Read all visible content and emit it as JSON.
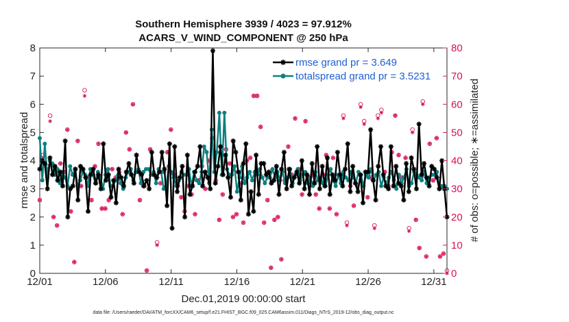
{
  "title": {
    "line1": "Southern Hemisphere 3939 / 4023 = 97.912%",
    "line2": "ACARS_V_WIND_COMPONENT @ 250 hPa"
  },
  "footer": "data file: /Users/raeder/DAI/ATM_forcXX/CAM6_setup/f.e21.FHIST_BGC.f09_025.CAM6assim.011/Diags_NTrS_2019-12/obs_diag_output.nc",
  "colors": {
    "rmse": "#000000",
    "spread": "#0d8080",
    "obs": "#d6115a",
    "legend_text": "#1f5fd0"
  },
  "chart_data": {
    "type": "line",
    "xlabel": "Dec.01,2019 00:00:00 start",
    "ylabel_left": "rmse and totalspread",
    "ylabel_right": "# of obs: o=possible; ∗=assimilated",
    "x_ticks": [
      "12/01",
      "12/06",
      "12/11",
      "12/16",
      "12/21",
      "12/26",
      "12/31"
    ],
    "x_tick_days": [
      1,
      6,
      11,
      16,
      21,
      26,
      31
    ],
    "xlim": [
      1,
      32
    ],
    "ylim_left": [
      0,
      8
    ],
    "y_ticks_left": [
      "0",
      "1",
      "2",
      "3",
      "4",
      "5",
      "6",
      "7",
      "8"
    ],
    "ylim_right": [
      0,
      80
    ],
    "y_ticks_right": [
      "0",
      "10",
      "20",
      "30",
      "40",
      "50",
      "60",
      "70",
      "80"
    ],
    "grid": false,
    "legend_position": "top-right",
    "series": [
      {
        "name": "rmse grand pr = 3.649",
        "axis": "left",
        "marker": "asterisk",
        "values": [
          3.7,
          4.0,
          3.9,
          3.0,
          4.1,
          3.5,
          3.8,
          3.3,
          3.6,
          3.1,
          4.7,
          2.0,
          3.0,
          3.1,
          3.7,
          2.6,
          3.8,
          3.7,
          3.4,
          2.2,
          3.5,
          3.7,
          3.2,
          3.5,
          3.0,
          4.6,
          3.3,
          3.5,
          2.7,
          3.3,
          2.5,
          3.7,
          3.4,
          3.1,
          3.6,
          3.9,
          3.5,
          3.2,
          4.2,
          3.6,
          3.5,
          3.1,
          3.3,
          3.0,
          4.3,
          3.5,
          3.4,
          3.6,
          4.3,
          3.7,
          2.4,
          4.6,
          1.6,
          4.5,
          2.9,
          3.4,
          3.8,
          2.0,
          4.2,
          2.8,
          3.1,
          3.6,
          3.8,
          4.5,
          3.1,
          3.6,
          3.4,
          3.0,
          7.9,
          3.2,
          3.8,
          4.5,
          3.5,
          4.2,
          3.4,
          2.7,
          4.7,
          4.3,
          3.6,
          2.6,
          3.9,
          4.6,
          2.1,
          2.9,
          2.2,
          4.2,
          2.8,
          3.9,
          3.9,
          3.5,
          3.6,
          3.2,
          3.3,
          3.8,
          2.8,
          3.7,
          4.3,
          3.0,
          3.7,
          3.1,
          3.4,
          3.6,
          3.2,
          4.0,
          3.0,
          3.5,
          2.8,
          3.9,
          3.2,
          4.5,
          3.0,
          3.8,
          3.1,
          4.1,
          2.8,
          3.5,
          3.3,
          4.3,
          3.5,
          3.1,
          3.7,
          4.6,
          2.9,
          3.8,
          3.2,
          2.9,
          3.5,
          2.5,
          3.6,
          3.6,
          5.1,
          3.3,
          2.6,
          3.8,
          4.5,
          3.5,
          3.1,
          3.0,
          4.5,
          3.1,
          3.8,
          3.2,
          3.1,
          2.6,
          3.9,
          2.9,
          4.1,
          3.7,
          3.0,
          5.3,
          3.5,
          3.9,
          3.4,
          3.1,
          3.8,
          3.7,
          3.4,
          3.0,
          4.0,
          3.0,
          2.0
        ]
      },
      {
        "name": "totalspread grand pr = 3.5231",
        "axis": "left",
        "marker": "dot",
        "values": [
          4.8,
          3.3,
          4.6,
          3.4,
          4.0,
          3.9,
          3.5,
          3.7,
          3.2,
          3.6,
          3.4,
          3.1,
          3.8,
          3.5,
          3.7,
          3.1,
          3.3,
          3.6,
          3.5,
          3.1,
          3.7,
          3.5,
          3.2,
          3.6,
          3.4,
          3.0,
          3.5,
          3.7,
          3.1,
          3.1,
          3.3,
          3.5,
          3.2,
          3.0,
          3.4,
          3.6,
          3.7,
          3.3,
          3.6,
          3.7,
          3.2,
          3.6,
          3.7,
          3.7,
          3.5,
          3.6,
          3.2,
          3.7,
          3.6,
          3.0,
          3.1,
          3.8,
          3.6,
          3.4,
          3.1,
          3.3,
          3.6,
          3.5,
          3.5,
          3.7,
          3.1,
          3.6,
          3.3,
          3.2,
          3.6,
          4.5,
          4.3,
          3.2,
          5.1,
          3.6,
          4.3,
          5.7,
          3.5,
          5.7,
          3.7,
          3.5,
          3.5,
          3.8,
          2.9,
          3.4,
          3.8,
          3.2,
          3.4,
          3.6,
          3.3,
          3.6,
          3.5,
          3.7,
          3.4,
          3.2,
          3.4,
          3.4,
          3.7,
          3.4,
          3.6,
          3.3,
          3.6,
          3.2,
          3.4,
          3.7,
          3.2,
          3.5,
          3.7,
          3.3,
          3.5,
          3.6,
          3.2,
          3.4,
          3.1,
          3.6,
          3.3,
          3.4,
          3.2,
          3.1,
          3.5,
          3.7,
          3.3,
          3.1,
          3.5,
          3.2,
          3.6,
          3.4,
          3.3,
          3.6,
          3.4,
          3.2,
          3.6,
          3.5,
          3.1,
          3.5,
          3.4,
          3.7,
          3.3,
          3.5,
          3.6,
          3.1,
          3.4,
          3.2,
          3.4,
          3.6,
          3.3,
          3.0,
          3.5,
          3.2,
          3.4,
          3.7,
          3.1,
          3.2,
          3.6,
          3.5,
          3.4,
          3.3,
          3.6,
          3.2,
          3.4,
          3.5,
          3.5,
          3.6,
          3.0,
          3.1,
          3.1,
          3.0
        ]
      },
      {
        "name": "possible",
        "axis": "right",
        "marker": "circle",
        "values": [
          26,
          42,
          38,
          56,
          20,
          17,
          39,
          36,
          51,
          22,
          4,
          47,
          31,
          65,
          34,
          26,
          38,
          46,
          23,
          23,
          26,
          37,
          34,
          36,
          21,
          50,
          44,
          60,
          36,
          26,
          31,
          1,
          44,
          35,
          11,
          32,
          36,
          43,
          51,
          35,
          31,
          27,
          22,
          31,
          28,
          21,
          33,
          38,
          30,
          40,
          48,
          33,
          19,
          28,
          44,
          39,
          20,
          21,
          32,
          18,
          40,
          41,
          63,
          63,
          52,
          18,
          26,
          2,
          19,
          20,
          5,
          33,
          45,
          35,
          55,
          37,
          28,
          54,
          34,
          35,
          28,
          23,
          35,
          42,
          23,
          41,
          21,
          35,
          56,
          18,
          31,
          24,
          31,
          60,
          54,
          27,
          34,
          17,
          56,
          58,
          36,
          31,
          43,
          56,
          42,
          34,
          41,
          16,
          51,
          19,
          9,
          61,
          6,
          46,
          33,
          48,
          6,
          7,
          1
        ]
      },
      {
        "name": "assimilated",
        "axis": "right",
        "marker": "asterisk",
        "values": [
          26,
          41,
          37,
          54,
          20,
          17,
          39,
          36,
          51,
          22,
          4,
          47,
          31,
          63,
          34,
          26,
          38,
          46,
          23,
          23,
          26,
          37,
          34,
          36,
          21,
          50,
          44,
          60,
          36,
          26,
          31,
          1,
          44,
          35,
          10,
          32,
          36,
          43,
          51,
          35,
          31,
          27,
          22,
          31,
          28,
          21,
          33,
          38,
          30,
          40,
          48,
          33,
          19,
          28,
          44,
          39,
          20,
          21,
          32,
          18,
          40,
          41,
          63,
          63,
          52,
          18,
          26,
          2,
          19,
          20,
          5,
          33,
          45,
          35,
          55,
          37,
          28,
          54,
          34,
          35,
          28,
          23,
          35,
          42,
          23,
          41,
          21,
          35,
          55,
          17,
          31,
          24,
          31,
          59,
          53,
          27,
          34,
          16,
          55,
          57,
          36,
          31,
          43,
          56,
          42,
          34,
          41,
          15,
          50,
          19,
          9,
          60,
          6,
          46,
          33,
          48,
          6,
          7,
          0
        ]
      }
    ]
  }
}
